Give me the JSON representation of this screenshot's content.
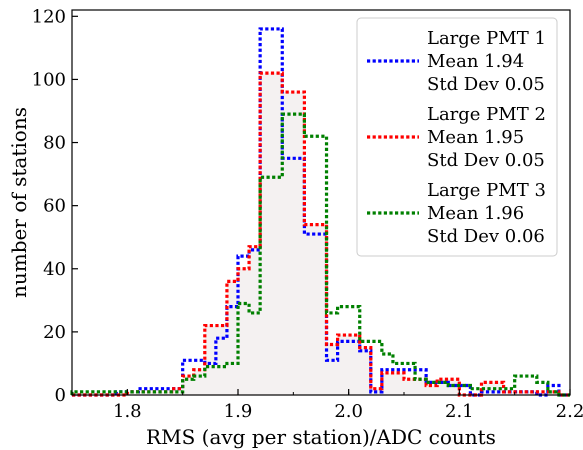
{
  "chart_data": {
    "type": "histogram",
    "xlabel": "RMS (avg per station)/ADC counts",
    "ylabel": "number of stations",
    "xlim": [
      1.75,
      2.2
    ],
    "ylim": [
      0,
      122
    ],
    "xticks": [
      "1.8",
      "1.9",
      "2.0",
      "2.1",
      "2.2"
    ],
    "yticks": [
      "0",
      "20",
      "40",
      "60",
      "80",
      "100",
      "120"
    ],
    "legend_position": "upper right",
    "bin_edges": [
      1.75,
      1.76,
      1.77,
      1.78,
      1.79,
      1.8,
      1.81,
      1.82,
      1.83,
      1.84,
      1.85,
      1.86,
      1.87,
      1.88,
      1.89,
      1.9,
      1.91,
      1.92,
      1.93,
      1.94,
      1.95,
      1.96,
      1.97,
      1.98,
      1.99,
      2.0,
      2.01,
      2.02,
      2.03,
      2.04,
      2.05,
      2.06,
      2.07,
      2.08,
      2.09,
      2.1,
      2.11,
      2.12,
      2.13,
      2.14,
      2.15,
      2.16,
      2.17,
      2.18,
      2.19,
      2.2
    ],
    "series": [
      {
        "name": "Large PMT 1",
        "legend_lines": [
          "Large PMT 1",
          "Mean 1.94",
          "Std Dev 0.05"
        ],
        "color": "#0000ff",
        "filled": false,
        "values": [
          0,
          0,
          0,
          0,
          1,
          1,
          2,
          2,
          2,
          2,
          11,
          11,
          10,
          18,
          28,
          44,
          46,
          116,
          116,
          75,
          75,
          51,
          51,
          11,
          17,
          17,
          14,
          1,
          8,
          8,
          8,
          8,
          4,
          4,
          3,
          3,
          0,
          1,
          1,
          1,
          1,
          1,
          0,
          3,
          0
        ]
      },
      {
        "name": "Large PMT 2",
        "legend_lines": [
          "Large PMT 2",
          "Mean 1.95",
          "Std Dev 0.05"
        ],
        "color": "#ff0000",
        "filled": true,
        "fill": "#f4f1f1",
        "values": [
          0,
          0,
          0,
          0,
          0,
          1,
          1,
          1,
          1,
          2,
          6,
          8,
          22,
          22,
          36,
          40,
          47,
          102,
          102,
          96,
          96,
          54,
          54,
          16,
          19,
          19,
          15,
          2,
          7,
          7,
          5,
          5,
          3,
          5,
          5,
          0,
          0,
          4,
          4,
          1,
          1,
          1,
          1,
          1,
          0
        ]
      },
      {
        "name": "Large PMT 3",
        "legend_lines": [
          "Large PMT 3",
          "Mean 1.96",
          "Std Dev 0.06"
        ],
        "color": "#008000",
        "filled": false,
        "values": [
          1,
          1,
          1,
          1,
          1,
          1,
          1,
          1,
          1,
          1,
          5,
          6,
          9,
          9,
          10,
          29,
          26,
          69,
          69,
          89,
          89,
          82,
          82,
          26,
          28,
          28,
          17,
          17,
          13,
          10,
          10,
          5,
          4,
          4,
          3,
          3,
          2,
          2,
          2,
          2,
          6,
          6,
          4,
          1,
          0
        ]
      }
    ]
  }
}
